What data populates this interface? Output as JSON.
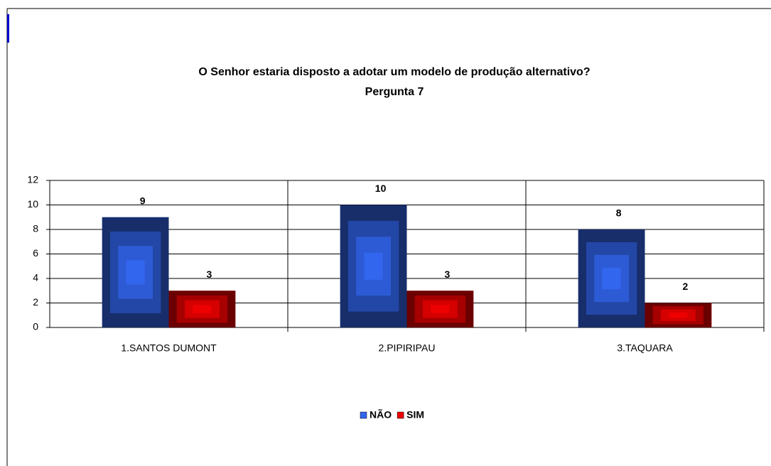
{
  "chart_data": {
    "type": "bar",
    "title": "O Senhor estaria disposto a adotar um modelo de produção alternativo?",
    "subtitle": "Pergunta 7",
    "categories": [
      "1.SANTOS DUMONT",
      "2.PIPIRIPAU",
      "3.TAQUARA"
    ],
    "series": [
      {
        "name": "NÃO",
        "color": "#3366ee",
        "values": [
          9,
          10,
          8
        ]
      },
      {
        "name": "SIM",
        "color": "#ee0000",
        "values": [
          3,
          3,
          2
        ]
      }
    ],
    "ylim": [
      0,
      12
    ],
    "yticks": [
      0,
      2,
      4,
      6,
      8,
      10,
      12
    ],
    "grid": true
  }
}
